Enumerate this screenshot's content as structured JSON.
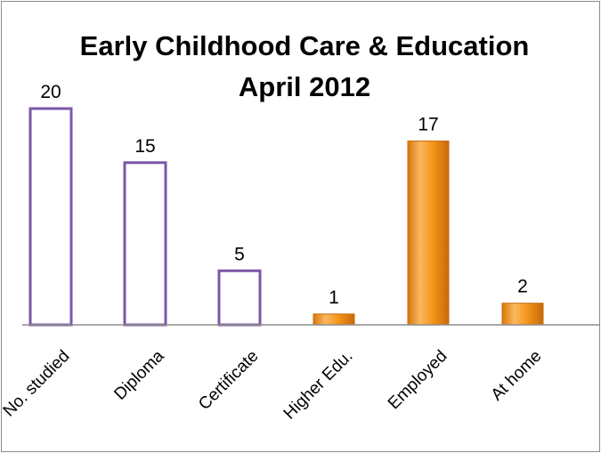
{
  "chart_data": {
    "type": "bar",
    "title": "Early Childhood Care & Education",
    "subtitle": "April 2012",
    "xlabel": "",
    "ylabel": "",
    "categories": [
      "No. studied",
      "Diploma",
      "Certificate",
      "Higher Edu.",
      "Employed",
      "At home"
    ],
    "values": [
      20,
      15,
      5,
      1,
      17,
      2
    ],
    "bar_styles": [
      "outline",
      "outline",
      "outline",
      "filled",
      "filled",
      "filled"
    ],
    "ylim": [
      0,
      21
    ],
    "grid": false,
    "legend": "none",
    "data_labels": true,
    "colors": {
      "outline_stroke": "#7a58a6",
      "outline_fill": "#ffffff",
      "filled_light": "#fbb85e",
      "filled_mid": "#f5961c",
      "filled_dark": "#c76a0a",
      "axis": "#8c8c8c"
    }
  }
}
